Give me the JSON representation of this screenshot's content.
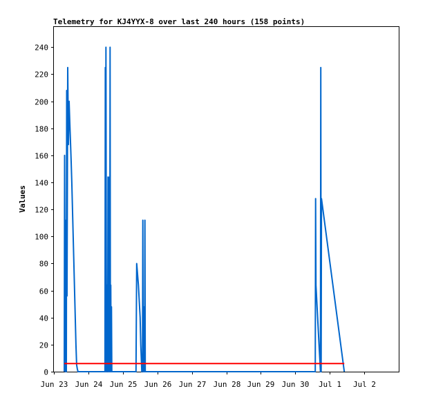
{
  "chart_data": {
    "type": "line",
    "title": "Telemetry for KJ4YYX-8 over last 240 hours (158 points)",
    "xlabel": "",
    "ylabel": "Values",
    "x_tick_labels": [
      "Jun 23",
      "Jun 24",
      "Jun 25",
      "Jun 26",
      "Jun 27",
      "Jun 28",
      "Jun 29",
      "Jun 30",
      "Jul 1",
      "Jul 2"
    ],
    "xlim_days": [
      23,
      33
    ],
    "ylim": [
      0,
      255
    ],
    "y_ticks": [
      0,
      20,
      40,
      60,
      80,
      100,
      120,
      140,
      160,
      180,
      200,
      220,
      240
    ],
    "grid": false,
    "colors": {
      "series_main": "#0066cc",
      "series_secondary": "#ff0000"
    },
    "series": [
      {
        "name": "",
        "color": "#0066cc",
        "x_day": [
          23.3,
          23.31,
          23.33,
          23.34,
          23.35,
          23.36,
          23.37,
          23.38,
          23.4,
          23.42,
          23.44,
          23.46,
          23.48,
          23.5,
          23.52,
          23.54,
          23.56,
          23.58,
          23.6,
          23.62,
          23.64,
          23.66,
          23.68,
          23.7,
          23.74,
          24.48,
          24.49,
          24.5,
          24.51,
          24.52,
          24.53,
          24.55,
          24.56,
          24.57,
          24.58,
          24.59,
          24.6,
          24.61,
          24.62,
          24.63,
          24.64,
          24.65,
          24.66,
          24.67,
          24.68,
          24.69,
          24.7,
          25.38,
          25.4,
          25.45,
          25.5,
          25.52,
          25.55,
          25.57,
          25.58,
          25.59,
          25.6,
          25.61,
          25.62,
          25.63,
          25.64,
          25.65,
          25.66,
          30.58,
          30.59,
          30.6,
          30.73,
          30.74,
          30.75,
          30.76,
          31.42
        ],
        "values": [
          0,
          160,
          0,
          56,
          112,
          0,
          208,
          56,
          225,
          168,
          200,
          184,
          170,
          155,
          140,
          120,
          100,
          80,
          60,
          40,
          20,
          5,
          2,
          0,
          0,
          0,
          225,
          0,
          240,
          80,
          0,
          64,
          0,
          144,
          0,
          128,
          0,
          144,
          0,
          240,
          0,
          64,
          0,
          48,
          0,
          0,
          0,
          0,
          80,
          64,
          40,
          20,
          0,
          5,
          112,
          0,
          48,
          0,
          0,
          0,
          112,
          0,
          0,
          0,
          128,
          64,
          0,
          225,
          0,
          128,
          0
        ]
      },
      {
        "name": "",
        "color": "#ff0000",
        "x_day": [
          23.3,
          31.42
        ],
        "values": [
          6,
          6
        ]
      }
    ]
  }
}
